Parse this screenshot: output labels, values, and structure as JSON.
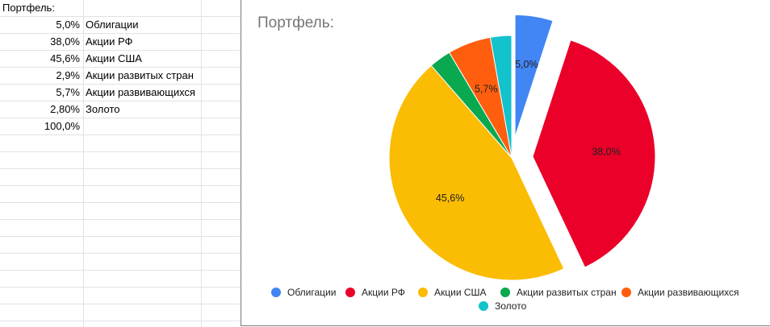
{
  "sheet": {
    "header": "Портфель:",
    "rows": [
      {
        "pct": "5,0%",
        "name": "Облигации"
      },
      {
        "pct": "38,0%",
        "name": "Акции РФ"
      },
      {
        "pct": "45,6%",
        "name": "Акции США"
      },
      {
        "pct": "2,9%",
        "name": "Акции развитых стран"
      },
      {
        "pct": "5,7%",
        "name": "Акции развивающихся"
      },
      {
        "pct": "2,80%",
        "name": "Золото"
      },
      {
        "pct": "100,0%",
        "name": ""
      }
    ]
  },
  "chart_data": {
    "type": "pie",
    "title": "Портфель:",
    "categories": [
      "Облигации",
      "Акции РФ",
      "Акции США",
      "Акции развитых стран",
      "Акции развивающихся",
      "Золото"
    ],
    "values": [
      5.0,
      38.0,
      45.6,
      2.9,
      5.7,
      2.8
    ],
    "data_labels": [
      "5,0%",
      "38,0%",
      "45,6%",
      "",
      "5,7%",
      ""
    ],
    "colors": [
      "#4285f4",
      "#ea0029",
      "#fbbc04",
      "#0aa84f",
      "#ff5e0e",
      "#12c2cc"
    ],
    "exploded": [
      true,
      true,
      false,
      false,
      false,
      false
    ],
    "legend_position": "bottom"
  }
}
